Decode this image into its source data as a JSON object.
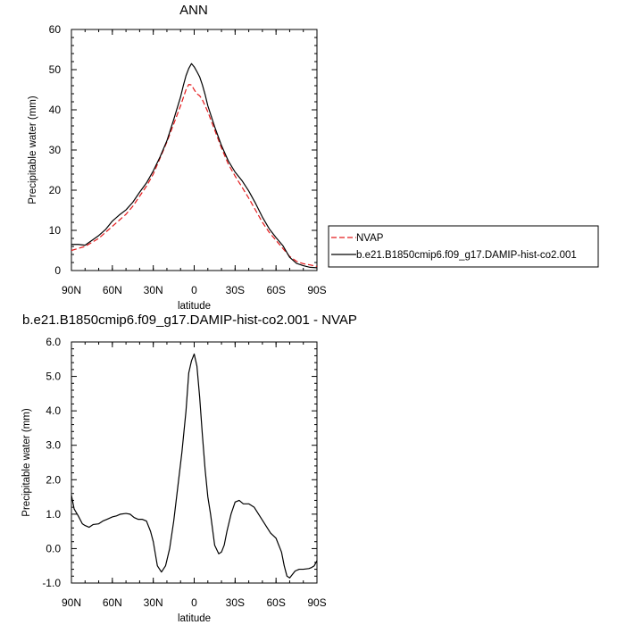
{
  "chart_data": [
    {
      "type": "line",
      "title": "ANN",
      "xlabel": "latitude",
      "ylabel": "Precipitable water (mm)",
      "xlim": [
        90,
        -90
      ],
      "ylim": [
        0,
        60
      ],
      "xticks": [
        {
          "value": 90,
          "label": "90N"
        },
        {
          "value": 60,
          "label": "60N"
        },
        {
          "value": 30,
          "label": "30N"
        },
        {
          "value": 0,
          "label": "0"
        },
        {
          "value": -30,
          "label": "30S"
        },
        {
          "value": -60,
          "label": "60S"
        },
        {
          "value": -90,
          "label": "90S"
        }
      ],
      "yticks": [
        {
          "value": 0,
          "label": "0"
        },
        {
          "value": 10,
          "label": "10"
        },
        {
          "value": 20,
          "label": "20"
        },
        {
          "value": 30,
          "label": "30"
        },
        {
          "value": 40,
          "label": "40"
        },
        {
          "value": 50,
          "label": "50"
        },
        {
          "value": 60,
          "label": "60"
        }
      ],
      "legend_position": "right",
      "series": [
        {
          "name": "NVAP",
          "color": "#e41a1c",
          "dash": "dashed",
          "x": [
            90,
            85,
            80,
            75,
            70,
            65,
            60,
            55,
            50,
            45,
            40,
            35,
            30,
            25,
            20,
            15,
            10,
            8,
            6,
            4,
            2,
            0,
            -2,
            -4,
            -6,
            -8,
            -10,
            -15,
            -20,
            -25,
            -30,
            -35,
            -40,
            -45,
            -50,
            -55,
            -60,
            -65,
            -70,
            -75,
            -80,
            -85,
            -90
          ],
          "y": [
            5.0,
            5.5,
            6.0,
            7.0,
            8.0,
            9.5,
            11.0,
            12.5,
            14.0,
            16.0,
            18.5,
            21.0,
            24.0,
            28.0,
            32.0,
            36.5,
            41.0,
            43.0,
            45.0,
            46.3,
            46.2,
            45.0,
            44.0,
            43.5,
            42.5,
            41.0,
            39.5,
            35.0,
            30.5,
            26.5,
            23.5,
            20.8,
            18.0,
            15.0,
            12.0,
            9.5,
            7.5,
            5.5,
            3.5,
            2.3,
            1.7,
            1.4,
            1.0
          ]
        },
        {
          "name": "b.e21.B1850cmip6.f09_g17.DAMIP-hist-co2.001",
          "color": "#000000",
          "dash": "solid",
          "x": [
            90,
            85,
            80,
            75,
            70,
            65,
            60,
            55,
            50,
            45,
            40,
            35,
            30,
            25,
            20,
            15,
            10,
            8,
            6,
            4,
            2,
            0,
            -2,
            -4,
            -6,
            -8,
            -10,
            -15,
            -20,
            -25,
            -30,
            -35,
            -40,
            -45,
            -50,
            -55,
            -60,
            -65,
            -70,
            -75,
            -80,
            -85,
            -90
          ],
          "y": [
            6.5,
            6.5,
            6.3,
            7.5,
            8.7,
            10.2,
            12.3,
            13.8,
            15.1,
            17.0,
            19.5,
            21.8,
            24.8,
            28.3,
            32.3,
            37.6,
            43.2,
            46.0,
            48.5,
            50.3,
            51.5,
            50.7,
            49.5,
            48.2,
            46.2,
            43.8,
            41.0,
            35.8,
            31.1,
            27.3,
            24.5,
            22.4,
            19.8,
            16.7,
            13.3,
            10.4,
            8.2,
            6.2,
            3.3,
            1.8,
            1.2,
            0.8,
            0.7
          ]
        }
      ]
    },
    {
      "type": "line",
      "title": "b.e21.B1850cmip6.f09_g17.DAMIP-hist-co2.001 - NVAP",
      "xlabel": "latitude",
      "ylabel": "Precipitable water (mm)",
      "xlim": [
        90,
        -90
      ],
      "ylim": [
        -1.0,
        6.0
      ],
      "xticks": [
        {
          "value": 90,
          "label": "90N"
        },
        {
          "value": 60,
          "label": "60N"
        },
        {
          "value": 30,
          "label": "30N"
        },
        {
          "value": 0,
          "label": "0"
        },
        {
          "value": -30,
          "label": "30S"
        },
        {
          "value": -60,
          "label": "60S"
        },
        {
          "value": -90,
          "label": "90S"
        }
      ],
      "yticks": [
        {
          "value": -1.0,
          "label": "-1.0"
        },
        {
          "value": 0.0,
          "label": "0.0"
        },
        {
          "value": 1.0,
          "label": "1.0"
        },
        {
          "value": 2.0,
          "label": "2.0"
        },
        {
          "value": 3.0,
          "label": "3.0"
        },
        {
          "value": 4.0,
          "label": "4.0"
        },
        {
          "value": 5.0,
          "label": "5.0"
        },
        {
          "value": 6.0,
          "label": "6.0"
        }
      ],
      "series": [
        {
          "color": "#000000",
          "dash": "solid",
          "x": [
            90,
            88,
            85,
            82,
            80,
            77,
            74,
            70,
            67,
            64,
            60,
            57,
            54,
            50,
            47,
            44,
            41,
            38,
            35,
            32,
            30,
            27,
            24,
            21,
            18,
            15,
            12,
            9,
            6,
            4,
            2,
            0,
            -2,
            -4,
            -6,
            -8,
            -10,
            -12,
            -15,
            -18,
            -20,
            -22,
            -24,
            -27,
            -30,
            -33,
            -36,
            -40,
            -44,
            -48,
            -52,
            -56,
            -60,
            -64,
            -66,
            -68,
            -70,
            -72,
            -74,
            -77,
            -80,
            -84,
            -86,
            -88,
            -90
          ],
          "y": [
            1.55,
            1.15,
            0.95,
            0.72,
            0.67,
            0.62,
            0.7,
            0.72,
            0.8,
            0.85,
            0.92,
            0.95,
            1.0,
            1.02,
            1.0,
            0.9,
            0.85,
            0.85,
            0.8,
            0.5,
            0.2,
            -0.5,
            -0.68,
            -0.5,
            0.0,
            0.8,
            1.8,
            2.8,
            4.0,
            5.1,
            5.45,
            5.65,
            5.3,
            4.4,
            3.3,
            2.3,
            1.5,
            1.0,
            0.1,
            -0.15,
            -0.1,
            0.1,
            0.5,
            1.0,
            1.35,
            1.4,
            1.3,
            1.3,
            1.2,
            0.95,
            0.7,
            0.45,
            0.3,
            -0.1,
            -0.5,
            -0.8,
            -0.85,
            -0.75,
            -0.65,
            -0.6,
            -0.6,
            -0.58,
            -0.55,
            -0.5,
            -0.35
          ]
        }
      ]
    }
  ]
}
